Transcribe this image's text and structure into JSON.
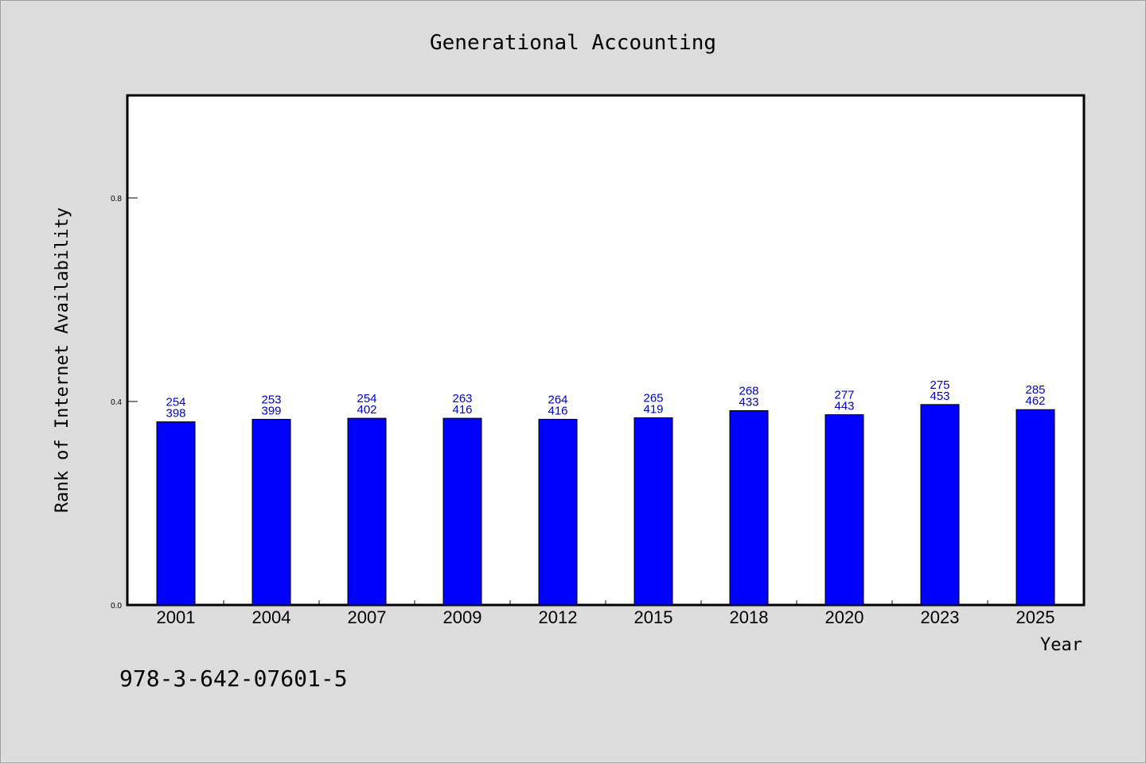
{
  "chart_data": {
    "type": "bar",
    "title": "Generational Accounting",
    "xlabel": "Year",
    "ylabel": "Rank of Internet Availability",
    "categories": [
      "2001",
      "2004",
      "2007",
      "2009",
      "2012",
      "2015",
      "2018",
      "2020",
      "2023",
      "2025"
    ],
    "values": [
      0.36,
      0.365,
      0.367,
      0.367,
      0.365,
      0.368,
      0.382,
      0.374,
      0.394,
      0.384
    ],
    "label_top": [
      "254",
      "253",
      "254",
      "263",
      "264",
      "265",
      "268",
      "277",
      "275",
      "285"
    ],
    "label_bottom": [
      "398",
      "399",
      "402",
      "416",
      "416",
      "419",
      "433",
      "443",
      "453",
      "462"
    ],
    "ylim": [
      0,
      1
    ],
    "yticks": [
      0.0,
      0.4,
      0.8
    ],
    "ytick_labels": [
      "0.0",
      "0.4",
      "0.8"
    ],
    "bar_color": "#0000ff",
    "label_color": "#0000cc",
    "grid": false,
    "legend": "none"
  },
  "footer": {
    "isbn": "978-3-642-07601-5"
  }
}
